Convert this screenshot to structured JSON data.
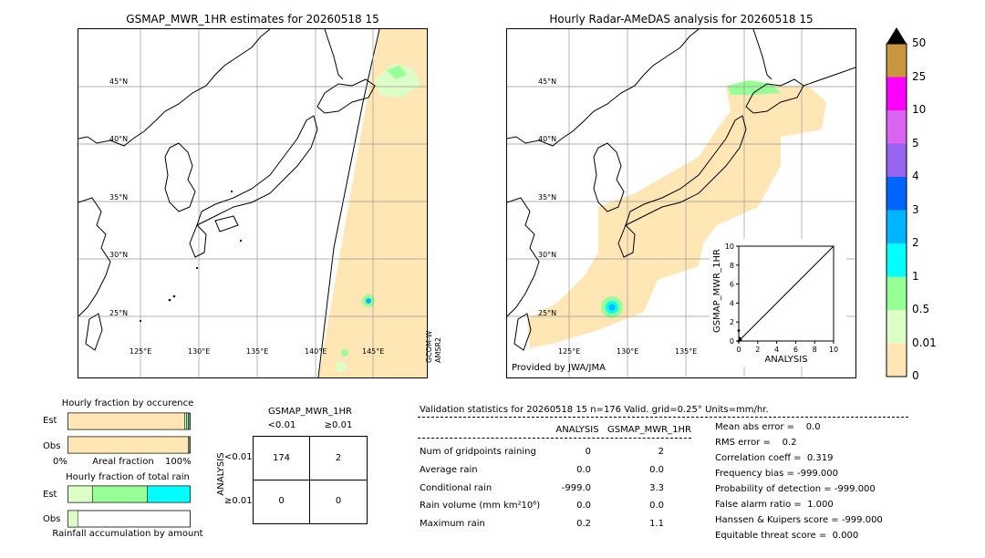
{
  "left_map": {
    "title": "GSMAP_MWR_1HR estimates for 20260518 15",
    "lat_labels": [
      "45°N",
      "40°N",
      "35°N",
      "30°N",
      "25°N"
    ],
    "lon_labels": [
      "125°E",
      "130°E",
      "135°E",
      "140°E",
      "145°E"
    ],
    "side_label_1": "GCOM-W",
    "side_label_2": "AMSR2"
  },
  "right_map": {
    "title": "Hourly Radar-AMeDAS analysis for 20260518 15",
    "lat_labels": [
      "45°N",
      "40°N",
      "35°N",
      "30°N",
      "25°N"
    ],
    "lon_labels": [
      "125°E",
      "130°E",
      "135°E"
    ],
    "credit": "Provided by JWA/JMA"
  },
  "colorbar": {
    "labels": [
      "50",
      "25",
      "10",
      "5",
      "4",
      "3",
      "2",
      "1",
      "0.5",
      "0.01",
      "0"
    ],
    "colors": [
      "#c8963c",
      "#ff00ff",
      "#d864f0",
      "#9664f0",
      "#0064ff",
      "#00b4ff",
      "#00ffff",
      "#96ff96",
      "#dcffc8",
      "#ffe6b4"
    ]
  },
  "chart_data": [
    {
      "type": "scatter",
      "title": "",
      "xlabel": "ANALYSIS",
      "ylabel": "GSMAP_MWR_1HR",
      "xlim": [
        0,
        10
      ],
      "ylim": [
        0,
        10
      ],
      "xticks": [
        "0",
        "2",
        "4",
        "6",
        "8",
        "10"
      ],
      "yticks": [
        "0",
        "2",
        "4",
        "6",
        "8",
        "10"
      ],
      "points": [
        {
          "x": 0.0,
          "y": 0.0
        },
        {
          "x": 0.1,
          "y": 0.3
        },
        {
          "x": 0.2,
          "y": 0.1
        },
        {
          "x": 0.0,
          "y": 1.1
        }
      ]
    },
    {
      "type": "bar",
      "title": "Hourly fraction by occurence",
      "xlabel": "Areal fraction",
      "x_min_label": "0%",
      "x_max_label": "100%",
      "categories": [
        "Est",
        "Obs"
      ],
      "series": [
        {
          "color": "#ffe6b4",
          "values": [
            0.955,
            0.985
          ]
        },
        {
          "color": "#dcffc8",
          "values": [
            0.015,
            0.01
          ]
        },
        {
          "color": "#96ff96",
          "values": [
            0.015,
            0.005
          ]
        },
        {
          "color": "#00ffff",
          "values": [
            0.005,
            0.0
          ]
        }
      ]
    },
    {
      "type": "bar",
      "title": "Hourly fraction of total rain",
      "xlabel": "Rainfall accumulation by amount",
      "categories": [
        "Est",
        "Obs"
      ],
      "series": [
        {
          "color": "#dcffc8",
          "values": [
            0.2,
            0.08
          ]
        },
        {
          "color": "#96ff96",
          "values": [
            0.45,
            0.0
          ]
        },
        {
          "color": "#00ffff",
          "values": [
            0.35,
            0.0
          ]
        }
      ]
    },
    {
      "type": "table",
      "title": "GSMAP_MWR_1HR",
      "col_headers": [
        "<0.01",
        "≥0.01"
      ],
      "row_axis_label": "ANALYSIS",
      "row_headers": [
        "<0.01",
        "≥0.01"
      ],
      "cells": [
        [
          "174",
          "2"
        ],
        [
          "0",
          "0"
        ]
      ]
    }
  ],
  "stats": {
    "header": "Validation statistics for 20260518 15  n=176 Valid. grid=0.25° Units=mm/hr.",
    "col_analysis": "ANALYSIS",
    "col_gsmap": "GSMAP_MWR_1HR",
    "rows": [
      {
        "label": "Num of gridpoints raining",
        "analysis": "0",
        "gsmap": "2"
      },
      {
        "label": "Average rain",
        "analysis": "0.0",
        "gsmap": "0.0"
      },
      {
        "label": "Conditional rain",
        "analysis": "-999.0",
        "gsmap": "3.3"
      },
      {
        "label": "Rain volume (mm km²10⁶)",
        "analysis": "0.0",
        "gsmap": "0.0"
      },
      {
        "label": "Maximum rain",
        "analysis": "0.2",
        "gsmap": "1.1"
      }
    ],
    "scores": [
      "Mean abs error =    0.0",
      "RMS error =    0.2",
      "Correlation coeff =  0.319",
      "Frequency bias = -999.000",
      "Probability of detection = -999.000",
      "False alarm ratio =  1.000",
      "Hanssen & Kuipers score = -999.000",
      "Equitable threat score =  0.000"
    ]
  }
}
